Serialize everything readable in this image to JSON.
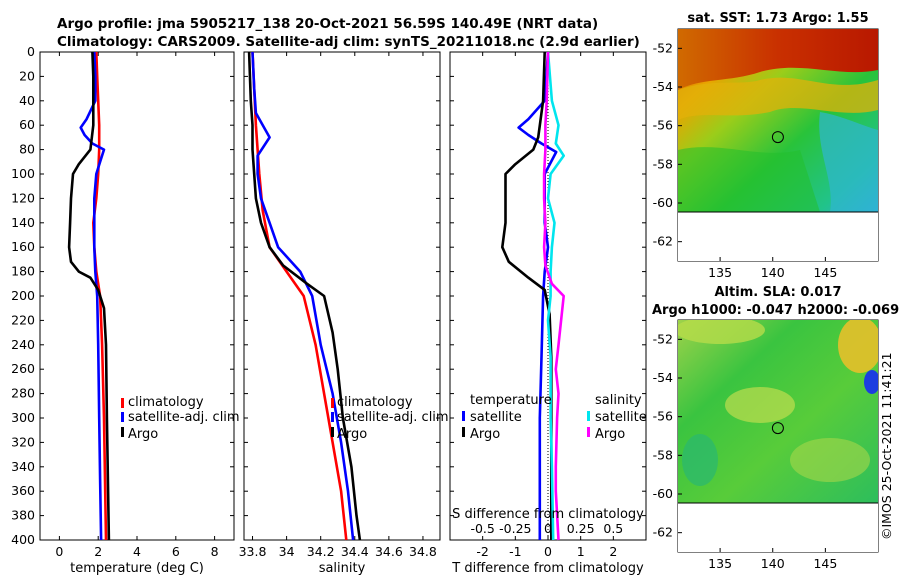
{
  "header": {
    "title_line1": "Argo profile: jma 5905217_138 20-Oct-2021 56.59S 140.49E (NRT data)",
    "title_line2": "Climatology: CARS2009. Satellite-adj clim: synTS_20211018.nc (2.9d earlier)"
  },
  "colors": {
    "clim": "#ff0000",
    "sat": "#0000ff",
    "argo": "#000000",
    "sat_s": "#00e5ee",
    "argo_s": "#ff00ff"
  },
  "chart_data": [
    {
      "id": "temperature",
      "type": "line",
      "xlabel": "temperature (deg C)",
      "ylabel": "",
      "xlim": [
        -1,
        9
      ],
      "ylim": [
        400,
        0
      ],
      "xticks": [
        0,
        2,
        4,
        6,
        8
      ],
      "xtick_labels": [
        "0",
        "2",
        "4",
        "6",
        "8"
      ],
      "yticks": [
        0,
        20,
        40,
        60,
        80,
        100,
        120,
        140,
        160,
        180,
        200,
        220,
        240,
        260,
        280,
        300,
        320,
        340,
        360,
        380,
        400
      ],
      "legend": [
        "climatology",
        "satellite-adj. clim",
        "Argo"
      ],
      "series": [
        {
          "name": "climatology",
          "color": "clim",
          "points": [
            [
              1.9,
              0
            ],
            [
              1.95,
              20
            ],
            [
              2.0,
              40
            ],
            [
              2.05,
              60
            ],
            [
              2.05,
              80
            ],
            [
              2.0,
              100
            ],
            [
              1.9,
              120
            ],
            [
              1.75,
              140
            ],
            [
              1.8,
              160
            ],
            [
              1.9,
              180
            ],
            [
              2.1,
              200
            ],
            [
              2.2,
              240
            ],
            [
              2.3,
              300
            ],
            [
              2.35,
              350
            ],
            [
              2.4,
              400
            ]
          ]
        },
        {
          "name": "satellite-adj. clim",
          "color": "sat",
          "points": [
            [
              1.8,
              0
            ],
            [
              1.85,
              20
            ],
            [
              1.85,
              40
            ],
            [
              1.4,
              55
            ],
            [
              1.1,
              62
            ],
            [
              1.3,
              68
            ],
            [
              1.7,
              75
            ],
            [
              2.3,
              80
            ],
            [
              2.1,
              90
            ],
            [
              1.9,
              100
            ],
            [
              1.8,
              120
            ],
            [
              1.8,
              140
            ],
            [
              1.8,
              160
            ],
            [
              1.85,
              180
            ],
            [
              1.95,
              200
            ],
            [
              2.0,
              240
            ],
            [
              2.05,
              300
            ],
            [
              2.1,
              350
            ],
            [
              2.15,
              400
            ]
          ]
        },
        {
          "name": "Argo",
          "color": "argo",
          "points": [
            [
              1.7,
              0
            ],
            [
              1.75,
              20
            ],
            [
              1.75,
              40
            ],
            [
              1.75,
              60
            ],
            [
              1.6,
              80
            ],
            [
              1.0,
              92
            ],
            [
              0.7,
              100
            ],
            [
              0.6,
              120
            ],
            [
              0.55,
              140
            ],
            [
              0.5,
              160
            ],
            [
              0.6,
              172
            ],
            [
              1.0,
              180
            ],
            [
              1.6,
              185
            ],
            [
              2.0,
              195
            ],
            [
              2.3,
              210
            ],
            [
              2.4,
              240
            ],
            [
              2.45,
              300
            ],
            [
              2.5,
              350
            ],
            [
              2.55,
              400
            ]
          ]
        }
      ]
    },
    {
      "id": "salinity",
      "type": "line",
      "xlabel": "salinity",
      "ylabel": "",
      "xlim": [
        33.75,
        34.9
      ],
      "ylim": [
        400,
        0
      ],
      "xticks": [
        33.8,
        34,
        34.2,
        34.4,
        34.6,
        34.8
      ],
      "xtick_labels": [
        "33.8",
        "34",
        "34.2",
        "34.4",
        "34.6",
        "34.8"
      ],
      "legend": [
        "climatology",
        "satellite-adj. clim",
        "Argo"
      ],
      "series": [
        {
          "name": "climatology",
          "color": "clim",
          "points": [
            [
              33.8,
              0
            ],
            [
              33.81,
              30
            ],
            [
              33.82,
              60
            ],
            [
              33.83,
              80
            ],
            [
              33.84,
              100
            ],
            [
              33.86,
              130
            ],
            [
              33.9,
              160
            ],
            [
              34.0,
              180
            ],
            [
              34.1,
              200
            ],
            [
              34.17,
              240
            ],
            [
              34.22,
              280
            ],
            [
              34.27,
              320
            ],
            [
              34.32,
              360
            ],
            [
              34.35,
              400
            ]
          ]
        },
        {
          "name": "satellite-adj. clim",
          "color": "sat",
          "points": [
            [
              33.8,
              0
            ],
            [
              33.81,
              30
            ],
            [
              33.82,
              50
            ],
            [
              33.9,
              70
            ],
            [
              33.83,
              85
            ],
            [
              33.83,
              100
            ],
            [
              33.85,
              120
            ],
            [
              33.9,
              140
            ],
            [
              33.95,
              160
            ],
            [
              34.08,
              180
            ],
            [
              34.15,
              200
            ],
            [
              34.2,
              240
            ],
            [
              34.27,
              280
            ],
            [
              34.32,
              320
            ],
            [
              34.36,
              360
            ],
            [
              34.39,
              400
            ]
          ]
        },
        {
          "name": "Argo",
          "color": "argo",
          "points": [
            [
              33.78,
              0
            ],
            [
              33.79,
              40
            ],
            [
              33.8,
              60
            ],
            [
              33.8,
              80
            ],
            [
              33.81,
              100
            ],
            [
              33.82,
              120
            ],
            [
              33.85,
              140
            ],
            [
              33.9,
              160
            ],
            [
              33.98,
              175
            ],
            [
              34.12,
              190
            ],
            [
              34.22,
              200
            ],
            [
              34.27,
              230
            ],
            [
              34.3,
              260
            ],
            [
              34.33,
              300
            ],
            [
              34.38,
              340
            ],
            [
              34.41,
              380
            ],
            [
              34.43,
              400
            ]
          ]
        }
      ]
    },
    {
      "id": "difference",
      "type": "line",
      "xlabel": "T difference from climatology",
      "ylabel": "",
      "xlim": [
        -3,
        3
      ],
      "ylim": [
        400,
        0
      ],
      "xticks": [
        -2,
        -1,
        0,
        1,
        2
      ],
      "xtick_labels": [
        "-2",
        "-1",
        "0",
        "1",
        "2"
      ],
      "secondary_axis_label": "S difference from climatology",
      "secondary_ticks": [
        -0.5,
        -0.25,
        0,
        0.25,
        0.5
      ],
      "secondary_tick_labels": [
        "-0.5",
        "-0.25",
        "0",
        "0.25",
        "0.5"
      ],
      "secondary_xlim": [
        -0.75,
        0.75
      ],
      "legend_temperature_title": "temperature",
      "legend_salinity_title": "salinity",
      "legend": [
        "satellite",
        "Argo",
        "satellite",
        "Argo"
      ],
      "series": [
        {
          "name": "T satellite",
          "color": "sat",
          "points": [
            [
              0,
              0
            ],
            [
              -0.1,
              40
            ],
            [
              -0.6,
              55
            ],
            [
              -0.9,
              62
            ],
            [
              -0.6,
              68
            ],
            [
              -0.2,
              75
            ],
            [
              0.25,
              82
            ],
            [
              -0.1,
              100
            ],
            [
              -0.1,
              140
            ],
            [
              0.0,
              160
            ],
            [
              -0.1,
              180
            ],
            [
              -0.15,
              200
            ],
            [
              -0.2,
              250
            ],
            [
              -0.25,
              300
            ],
            [
              -0.25,
              400
            ]
          ]
        },
        {
          "name": "T Argo",
          "color": "argo",
          "points": [
            [
              -0.1,
              0
            ],
            [
              -0.15,
              40
            ],
            [
              -0.3,
              70
            ],
            [
              -0.45,
              80
            ],
            [
              -1.0,
              92
            ],
            [
              -1.3,
              100
            ],
            [
              -1.3,
              120
            ],
            [
              -1.3,
              140
            ],
            [
              -1.4,
              160
            ],
            [
              -1.2,
              172
            ],
            [
              -0.6,
              185
            ],
            [
              -0.1,
              195
            ],
            [
              0.05,
              215
            ],
            [
              0.1,
              250
            ],
            [
              0.1,
              300
            ],
            [
              0.1,
              400
            ]
          ]
        },
        {
          "name": "S satellite",
          "color": "sat_s",
          "points": [
            [
              0,
              0
            ],
            [
              0.03,
              40
            ],
            [
              0.08,
              60
            ],
            [
              0.06,
              75
            ],
            [
              0.12,
              85
            ],
            [
              0.02,
              100
            ],
            [
              0.0,
              120
            ],
            [
              0.05,
              140
            ],
            [
              0.03,
              160
            ],
            [
              0.02,
              180
            ],
            [
              0.02,
              200
            ],
            [
              0.0,
              220
            ],
            [
              0.02,
              250
            ],
            [
              0.02,
              300
            ],
            [
              0.03,
              340
            ],
            [
              0.04,
              400
            ]
          ]
        },
        {
          "name": "S Argo",
          "color": "argo_s",
          "points": [
            [
              0,
              0
            ],
            [
              -0.01,
              40
            ],
            [
              -0.02,
              60
            ],
            [
              -0.02,
              80
            ],
            [
              -0.03,
              100
            ],
            [
              -0.03,
              120
            ],
            [
              -0.02,
              140
            ],
            [
              -0.03,
              160
            ],
            [
              -0.02,
              175
            ],
            [
              0.03,
              190
            ],
            [
              0.12,
              200
            ],
            [
              0.1,
              220
            ],
            [
              0.08,
              240
            ],
            [
              0.06,
              260
            ],
            [
              0.08,
              280
            ],
            [
              0.07,
              300
            ],
            [
              0.06,
              340
            ],
            [
              0.06,
              360
            ],
            [
              0.08,
              400
            ]
          ]
        }
      ]
    },
    {
      "id": "sst_map",
      "type": "heatmap",
      "title": "sat. SST: 1.73 Argo: 1.55",
      "xlim": [
        131,
        150
      ],
      "ylim": [
        -63,
        -51
      ],
      "xticks": [
        135,
        140,
        145
      ],
      "xtick_labels": [
        "135",
        "140",
        "145"
      ],
      "yticks": [
        -52,
        -54,
        -56,
        -58,
        -60,
        -62
      ],
      "ytick_labels": [
        "-52",
        "-54",
        "-56",
        "-58",
        "-60",
        "-62"
      ],
      "marker": [
        140.49,
        -56.59
      ]
    },
    {
      "id": "sla_map",
      "type": "heatmap",
      "title_line1": "Altim. SLA: 0.017",
      "title_line2": "Argo h1000: -0.047 h2000: -0.069",
      "xlim": [
        131,
        150
      ],
      "ylim": [
        -63,
        -51
      ],
      "xticks": [
        135,
        140,
        145
      ],
      "xtick_labels": [
        "135",
        "140",
        "145"
      ],
      "yticks": [
        -52,
        -54,
        -56,
        -58,
        -60,
        -62
      ],
      "ytick_labels": [
        "-52",
        "-54",
        "-56",
        "-58",
        "-60",
        "-62"
      ],
      "marker": [
        140.49,
        -56.59
      ]
    }
  ],
  "watermark": "©IMOS 25-Oct-2021 11:41:21"
}
